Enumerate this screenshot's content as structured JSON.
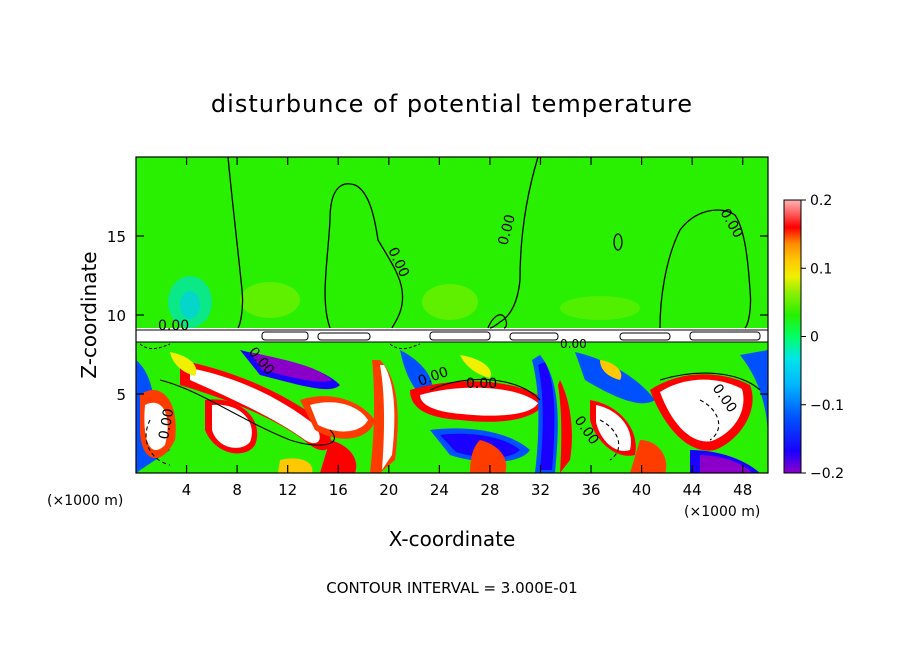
{
  "chart_data": {
    "type": "heatmap",
    "title": "disturbunce of potential temperature",
    "xlabel": "X-coordinate",
    "ylabel": "Z-coordinate",
    "x_unit_left": "(×1000 m)",
    "x_unit_right": "(×1000 m)",
    "footer": "CONTOUR INTERVAL = 3.000E-01",
    "xlim": [
      0,
      50
    ],
    "ylim": [
      0,
      20
    ],
    "x_ticks": [
      4,
      8,
      12,
      16,
      20,
      24,
      28,
      32,
      36,
      40,
      44,
      48
    ],
    "x_tick_labels": [
      "4",
      "8",
      "12",
      "16",
      "20",
      "24",
      "28",
      "32",
      "36",
      "40",
      "44",
      "48"
    ],
    "y_ticks": [
      5,
      10,
      15
    ],
    "y_tick_labels": [
      "5",
      "10",
      "15"
    ],
    "colorbar": {
      "range": [
        -0.2,
        0.2
      ],
      "ticks": [
        0.2,
        0.1,
        0,
        -0.1,
        -0.2
      ],
      "tick_labels": [
        "0.2",
        "0.1",
        "0",
        "−0.1",
        "−0.2"
      ],
      "colors": [
        "#8b00c8",
        "#1a00ff",
        "#0050ff",
        "#00b4ff",
        "#00e6e6",
        "#00ff64",
        "#28f000",
        "#8cf000",
        "#f0f000",
        "#ffc800",
        "#ff8c00",
        "#ff3c00",
        "#ff0000",
        "#ff6e6e",
        "#ffb4b4"
      ]
    },
    "contour_labels": [
      "0.00",
      "0.00",
      "0.00",
      "0.00",
      "0.00",
      "0.00",
      "0.00",
      "0.00",
      "0.00",
      "0.00",
      "0.00"
    ]
  },
  "colors": {
    "upper_layer": "#28f000",
    "background": "#ffffff"
  }
}
